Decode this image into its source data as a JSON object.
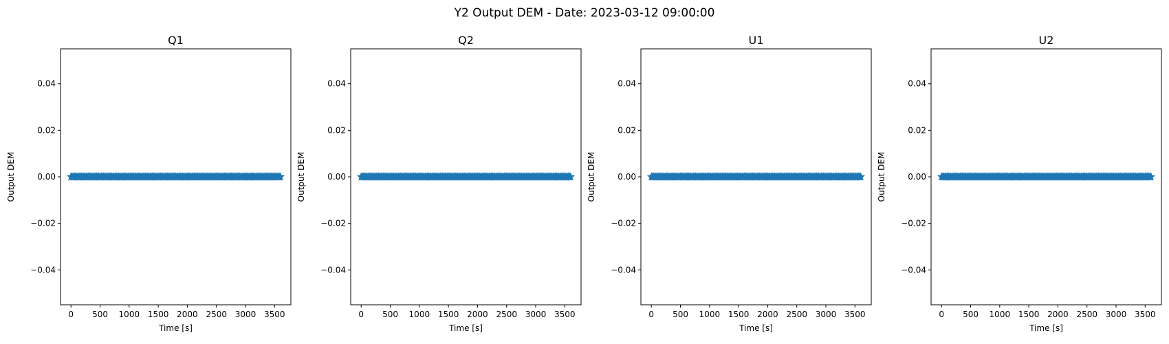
{
  "figure_title": "Y2 Output DEM - Date: 2023-03-12 09:00:00",
  "colors": {
    "series": "#1f77b4",
    "axes": "#000000",
    "background": "#ffffff"
  },
  "chart_data": [
    {
      "type": "scatter",
      "title": "Q1",
      "xlabel": "Time [s]",
      "ylabel": "Output DEM",
      "xlim": [
        -180,
        3780
      ],
      "ylim": [
        -0.055,
        0.055
      ],
      "xticks": [
        0,
        500,
        1000,
        1500,
        2000,
        2500,
        3000,
        3500
      ],
      "yticks": [
        -0.04,
        -0.02,
        0.0,
        0.02,
        0.04
      ],
      "ytick_labels": [
        "−0.04",
        "−0.02",
        "0.00",
        "0.02",
        "0.04"
      ],
      "marker": "star",
      "grid": false,
      "series": [
        {
          "x_start": 0,
          "x_end": 3600,
          "x_step": 20,
          "y": 0.0
        }
      ]
    },
    {
      "type": "scatter",
      "title": "Q2",
      "xlabel": "Time [s]",
      "ylabel": "Output DEM",
      "xlim": [
        -180,
        3780
      ],
      "ylim": [
        -0.055,
        0.055
      ],
      "xticks": [
        0,
        500,
        1000,
        1500,
        2000,
        2500,
        3000,
        3500
      ],
      "yticks": [
        -0.04,
        -0.02,
        0.0,
        0.02,
        0.04
      ],
      "ytick_labels": [
        "−0.04",
        "−0.02",
        "0.00",
        "0.02",
        "0.04"
      ],
      "marker": "star",
      "grid": false,
      "series": [
        {
          "x_start": 0,
          "x_end": 3600,
          "x_step": 20,
          "y": 0.0
        }
      ]
    },
    {
      "type": "scatter",
      "title": "U1",
      "xlabel": "Time [s]",
      "ylabel": "Output DEM",
      "xlim": [
        -180,
        3780
      ],
      "ylim": [
        -0.055,
        0.055
      ],
      "xticks": [
        0,
        500,
        1000,
        1500,
        2000,
        2500,
        3000,
        3500
      ],
      "yticks": [
        -0.04,
        -0.02,
        0.0,
        0.02,
        0.04
      ],
      "ytick_labels": [
        "−0.04",
        "−0.02",
        "0.00",
        "0.02",
        "0.04"
      ],
      "marker": "star",
      "grid": false,
      "series": [
        {
          "x_start": 0,
          "x_end": 3600,
          "x_step": 20,
          "y": 0.0
        }
      ]
    },
    {
      "type": "scatter",
      "title": "U2",
      "xlabel": "Time [s]",
      "ylabel": "Output DEM",
      "xlim": [
        -180,
        3780
      ],
      "ylim": [
        -0.055,
        0.055
      ],
      "xticks": [
        0,
        500,
        1000,
        1500,
        2000,
        2500,
        3000,
        3500
      ],
      "yticks": [
        -0.04,
        -0.02,
        0.0,
        0.02,
        0.04
      ],
      "ytick_labels": [
        "−0.04",
        "−0.02",
        "0.00",
        "0.02",
        "0.04"
      ],
      "marker": "star",
      "grid": false,
      "series": [
        {
          "x_start": 0,
          "x_end": 3600,
          "x_step": 20,
          "y": 0.0
        }
      ]
    }
  ]
}
